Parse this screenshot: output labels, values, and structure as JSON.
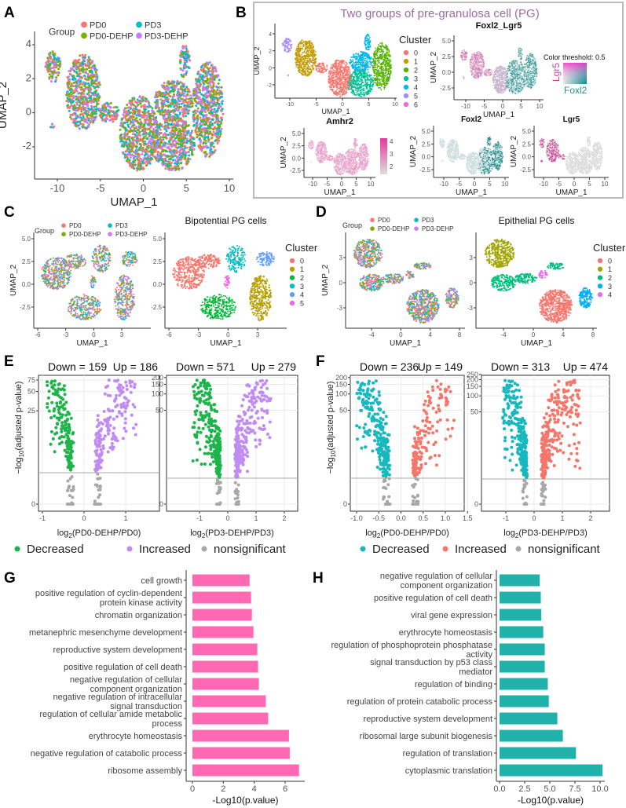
{
  "panels": {
    "labels": [
      "A",
      "B",
      "C",
      "D",
      "E",
      "F",
      "G",
      "H"
    ],
    "B_title": "Two groups of pre-granulosa cell (PG)",
    "E_legend": [
      "Decreased",
      "Increased",
      "nonsignificant"
    ],
    "F_legend": [
      "Decreased",
      "Increased",
      "nonsignificant"
    ]
  },
  "colors": {
    "group": {
      "PD0": "#F8766D",
      "PD0-DEHP": "#7CAE00",
      "PD3": "#00BFC4",
      "PD3-DEHP": "#C77CFF"
    },
    "clusters7": [
      "#F8766D",
      "#C49A00",
      "#53B400",
      "#00C094",
      "#00B6EB",
      "#A58AFF",
      "#FB61D7"
    ],
    "clusters6": [
      "#F8766D",
      "#B79F00",
      "#00BA38",
      "#00BFC4",
      "#619CFF",
      "#F564E3"
    ],
    "clusters5": [
      "#F8766D",
      "#A3A500",
      "#00BF7D",
      "#00B0F6",
      "#E76BF3"
    ],
    "E_decreased": "#1DB44B",
    "E_increased": "#C08BF2",
    "F_decreased": "#17B8BE",
    "F_increased": "#F4756A",
    "nonsignificant": "#A8A8A8",
    "G_bar": "#FF69B4",
    "H_bar": "#20B2AA",
    "B_title": "#9E6BA9"
  },
  "chart_data": [
    {
      "panel": "A",
      "type": "scatter",
      "title": "",
      "xlabel": "UMAP_1",
      "ylabel": "UMAP_2",
      "x_ticks": [
        "-10",
        "-5",
        "0",
        "5",
        "10"
      ],
      "y_ticks": [
        "-2",
        "0",
        "2",
        "4"
      ],
      "legend_title": "Group",
      "legend": [
        "PD0",
        "PD0-DEHP",
        "PD3",
        "PD3-DEHP"
      ]
    },
    {
      "panel": "B",
      "type": "scatter",
      "title": "",
      "xlabel": "UMAP_1",
      "ylabel": "UMAP_2",
      "x_ticks": [
        "-10",
        "-5",
        "0",
        "5",
        "10"
      ],
      "y_ticks": [
        "-2",
        "0",
        "2",
        "4"
      ],
      "legend_title": "Cluster",
      "legend": [
        "0",
        "1",
        "2",
        "3",
        "4",
        "5",
        "6"
      ]
    },
    {
      "panel": "B",
      "type": "scatter",
      "title": "Foxl2_Lgr5",
      "xlabel": "UMAP_1",
      "ylabel": "UMAP_2",
      "x_ticks": [
        "-10",
        "-5",
        "0",
        "5",
        "10"
      ],
      "y_ticks": [
        "-2.5",
        "0.0",
        "2.5",
        "5.0"
      ],
      "legend_title": "Color threshold: 0.5",
      "legend": [
        "Lgr5",
        "Foxl2"
      ]
    },
    {
      "panel": "B",
      "type": "scatter",
      "title": "Amhr2",
      "xlabel": "UMAP_1",
      "ylabel": "UMAP_2",
      "x_ticks": [
        "-10",
        "-5",
        "0",
        "5",
        "10"
      ],
      "y_ticks": [
        "-2.5",
        "0.0",
        "2.5",
        "5.0"
      ],
      "colorbar_ticks": [
        "2",
        "3",
        "4"
      ]
    },
    {
      "panel": "B",
      "type": "scatter",
      "title": "Foxl2",
      "xlabel": "UMAP_1",
      "ylabel": "UMAP_2",
      "x_ticks": [
        "-10",
        "-5",
        "0",
        "5",
        "10"
      ],
      "y_ticks": [
        "-2.5",
        "0.0",
        "2.5",
        "5.0"
      ]
    },
    {
      "panel": "B",
      "type": "scatter",
      "title": "Lgr5",
      "xlabel": "UMAP_1",
      "ylabel": "UMAP_2",
      "x_ticks": [
        "-10",
        "-5",
        "0",
        "5",
        "10"
      ],
      "y_ticks": [
        "-2.5",
        "0.0",
        "2.5",
        "5.0"
      ]
    },
    {
      "panel": "C",
      "type": "scatter",
      "title": "",
      "xlabel": "UMAP_1",
      "ylabel": "UMAP_2",
      "x_ticks": [
        "-6",
        "-3",
        "0",
        "3"
      ],
      "y_ticks": [
        "-2.5",
        "0.0",
        "2.5",
        "5.0"
      ],
      "legend_title": "Group",
      "legend": [
        "PD0",
        "PD0-DEHP",
        "PD3",
        "PD3-DEHP"
      ]
    },
    {
      "panel": "C",
      "type": "scatter",
      "title": "Bipotential PG cells",
      "xlabel": "UMAP_1",
      "ylabel": "",
      "x_ticks": [
        "-6",
        "-3",
        "0",
        "3"
      ],
      "y_ticks": [
        "-2.5",
        "0.0",
        "2.5",
        "5.0"
      ],
      "legend_title": "Cluster",
      "legend": [
        "0",
        "1",
        "2",
        "3",
        "4",
        "5"
      ]
    },
    {
      "panel": "D",
      "type": "scatter",
      "title": "",
      "xlabel": "UMAP_1",
      "ylabel": "UMAP_2",
      "x_ticks": [
        "-4",
        "0",
        "4",
        "8"
      ],
      "y_ticks": [
        "-3",
        "0",
        "3"
      ],
      "legend_title": "Group",
      "legend": [
        "PD0",
        "PD0-DEHP",
        "PD3",
        "PD3-DEHP"
      ]
    },
    {
      "panel": "D",
      "type": "scatter",
      "title": "Epithelial PG cells",
      "xlabel": "UMAP_1",
      "ylabel": "",
      "x_ticks": [
        "-4",
        "0",
        "4",
        "8"
      ],
      "y_ticks": [
        "-3",
        "0",
        "3"
      ],
      "legend_title": "Cluster",
      "legend": [
        "0",
        "1",
        "2",
        "3",
        "4"
      ]
    },
    {
      "panel": "E",
      "type": "scatter",
      "title_down": "Down = 159",
      "title_up": "Up = 186",
      "down": 159,
      "up": 186,
      "xlabel": [
        "log",
        "2",
        "(PD0-DEHP/PD0)"
      ],
      "ylabel": [
        "−log",
        "10",
        "(adjusted p-value)"
      ],
      "x_ticks": [
        "-1",
        "0",
        "1"
      ],
      "y_ticks": [
        "0",
        "25",
        "50",
        "75"
      ]
    },
    {
      "panel": "E",
      "type": "scatter",
      "title_down": "Down = 571",
      "title_up": "Up = 279",
      "down": 571,
      "up": 279,
      "xlabel": [
        "log",
        "2",
        "(PD3-DEHP/PD3)"
      ],
      "ylabel": [
        "",
        "",
        ""
      ],
      "x_ticks": [
        "-1",
        "0",
        "1",
        "2"
      ],
      "y_ticks": [
        "0",
        "50",
        "100",
        "150",
        "200"
      ]
    },
    {
      "panel": "F",
      "type": "scatter",
      "title_down": "Down = 236",
      "title_up": "Up = 149",
      "down": 236,
      "up": 149,
      "xlabel": [
        "log",
        "2",
        "(PD0-DEHP/PD0)"
      ],
      "ylabel": [
        "−log",
        "10",
        "(adjusted p-value)"
      ],
      "x_ticks": [
        "-1.0",
        "-0.5",
        "0.0",
        "0.5",
        "1.0",
        "1.5"
      ],
      "y_ticks": [
        "0",
        "50",
        "100",
        "150",
        "200"
      ]
    },
    {
      "panel": "F",
      "type": "scatter",
      "title_down": "Down = 313",
      "title_up": "Up = 474",
      "down": 313,
      "up": 474,
      "xlabel": [
        "log",
        "2",
        "(PD3-DEHP/PD3)"
      ],
      "ylabel": [
        "",
        "",
        ""
      ],
      "x_ticks": [
        "-1",
        "0",
        "1",
        "2"
      ],
      "y_ticks": [
        "0",
        "50",
        "100",
        "150",
        "200",
        "250"
      ]
    },
    {
      "panel": "G",
      "type": "bar",
      "orientation": "horizontal",
      "xlabel": "-Log10(p.value)",
      "x_ticks": [
        "0",
        "2",
        "4",
        "6"
      ],
      "xlim": [
        0,
        7
      ],
      "categories": [
        [
          "cell growth"
        ],
        [
          "positive regulation of cyclin-dependent",
          "protein kinase activity"
        ],
        [
          "chromatin organization"
        ],
        [
          "metanephric mesenchyme development"
        ],
        [
          "reproductive system development"
        ],
        [
          "positive regulation of cell death"
        ],
        [
          "negative regulation of cellular",
          "component organization"
        ],
        [
          "negative regulation of intracellular",
          "signal transduction"
        ],
        [
          "regulation of cellular amide metabolic",
          "process"
        ],
        [
          "erythrocyte homeostasis"
        ],
        [
          "negative regulation of catabolic process"
        ],
        [
          "ribosome assembly"
        ]
      ],
      "values": [
        3.7,
        3.8,
        3.85,
        3.95,
        4.2,
        4.25,
        4.3,
        4.75,
        4.9,
        6.25,
        6.3,
        6.9
      ]
    },
    {
      "panel": "H",
      "type": "bar",
      "orientation": "horizontal",
      "xlabel": "-Log10(p.value)",
      "x_ticks": [
        "0.0",
        "2.5",
        "5.0",
        "7.5",
        "10.0"
      ],
      "xlim": [
        0,
        10.6
      ],
      "categories": [
        [
          "negative regulation of cellular",
          "component organization"
        ],
        [
          "positive regulation of cell death"
        ],
        [
          "viral gene expression"
        ],
        [
          "erythrocyte homeostasis"
        ],
        [
          "regulation of phosphoprotein phosphatase",
          "activity"
        ],
        [
          "signal transduction by p53 class",
          "mediator"
        ],
        [
          "regulation of binding"
        ],
        [
          "regulation of protein catabolic process"
        ],
        [
          "reproductive system development"
        ],
        [
          "ribosomal large subunit biogenesis"
        ],
        [
          "regulation of translation"
        ],
        [
          "cytoplasmic translation"
        ]
      ],
      "values": [
        4.0,
        4.1,
        4.15,
        4.35,
        4.5,
        4.5,
        4.8,
        4.9,
        5.75,
        6.3,
        7.6,
        10.25
      ]
    }
  ]
}
